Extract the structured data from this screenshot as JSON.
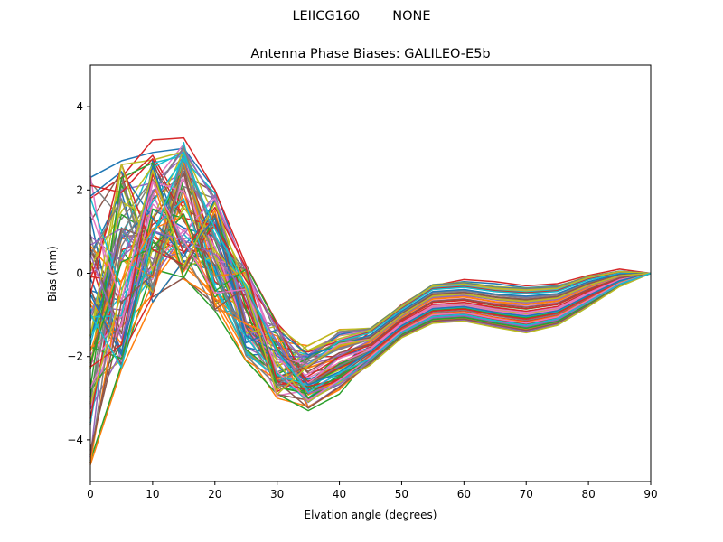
{
  "suptitle": {
    "left": "LEIICG160",
    "right": "NONE"
  },
  "chart_data": {
    "type": "line",
    "title": "Antenna Phase Biases: GALILEO-E5b",
    "xlabel": "Elvation angle (degrees)",
    "ylabel": "Bias (mm)",
    "xlim": [
      0,
      90
    ],
    "ylim": [
      -5,
      5
    ],
    "xticks": [
      0,
      10,
      20,
      30,
      40,
      50,
      60,
      70,
      80,
      90
    ],
    "yticks": [
      -4,
      -2,
      0,
      2,
      4
    ],
    "grid": false,
    "legend": "none",
    "x": [
      0,
      5,
      10,
      15,
      20,
      25,
      30,
      35,
      40,
      45,
      50,
      55,
      60,
      65,
      70,
      75,
      80,
      85,
      90
    ],
    "series_count": 80,
    "representative_series": [
      {
        "values": [
          2.3,
          2.7,
          2.9,
          3.0,
          2.0,
          0.0,
          -1.8,
          -2.6,
          -2.3,
          -1.6,
          -0.8,
          -0.3,
          -0.2,
          -0.25,
          -0.35,
          -0.3,
          -0.1,
          0.05,
          0.0
        ]
      },
      {
        "values": [
          -4.6,
          -2.3,
          -0.7,
          0.3,
          -0.6,
          -1.9,
          -3.0,
          -3.2,
          -2.8,
          -2.0,
          -1.4,
          -1.1,
          -1.05,
          -1.2,
          -1.35,
          -1.2,
          -0.75,
          -0.3,
          0.0
        ]
      },
      {
        "values": [
          -4.5,
          -2.2,
          0.1,
          -0.1,
          -0.9,
          -2.1,
          -2.9,
          -3.3,
          -2.9,
          -2.0,
          -1.5,
          -1.15,
          -1.1,
          -1.25,
          -1.4,
          -1.25,
          -0.8,
          -0.3,
          0.0
        ]
      },
      {
        "values": [
          1.8,
          2.3,
          3.2,
          3.25,
          2.0,
          0.2,
          -1.2,
          -2.0,
          -2.0,
          -1.4,
          -0.75,
          -0.3,
          -0.15,
          -0.2,
          -0.3,
          -0.25,
          -0.05,
          0.1,
          0.0
        ]
      },
      {
        "values": [
          0.0,
          0.4,
          1.0,
          0.7,
          0.2,
          -1.2,
          -2.4,
          -2.8,
          -2.5,
          -1.7,
          -1.0,
          -0.6,
          -0.55,
          -0.7,
          -0.8,
          -0.7,
          -0.4,
          -0.1,
          0.0
        ]
      }
    ],
    "colors": [
      "#1f77b4",
      "#ff7f0e",
      "#2ca02c",
      "#d62728",
      "#9467bd",
      "#8c564b",
      "#e377c2",
      "#7f7f7f",
      "#bcbd22",
      "#17becf"
    ]
  }
}
